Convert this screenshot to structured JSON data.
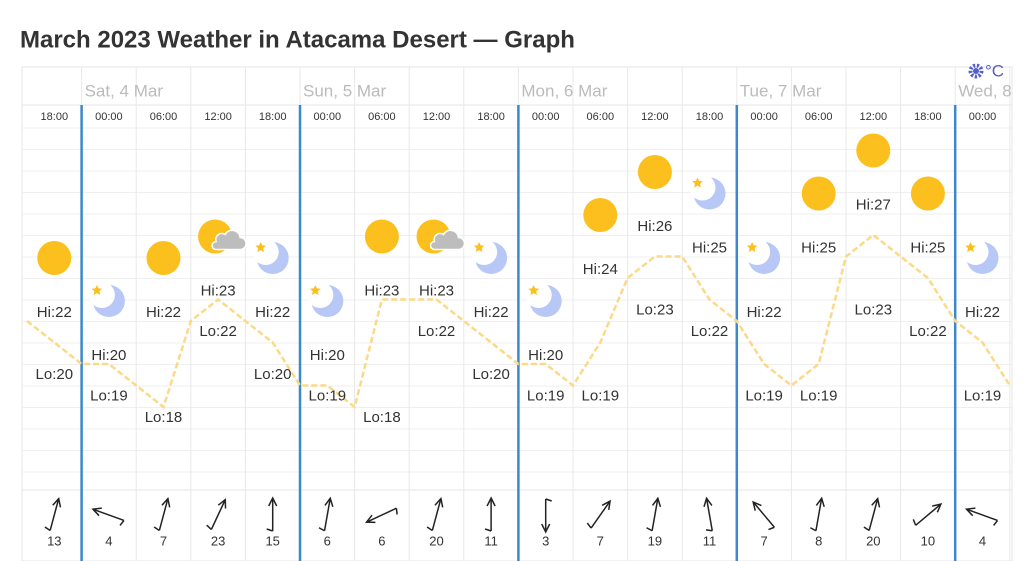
{
  "title": "March 2023 Weather in Atacama Desert — Graph",
  "units": "°C",
  "columns": [
    {
      "time": "18:00",
      "icon": "sun",
      "hi": {
        "label": "Hi:22",
        "value": 22
      },
      "lo": {
        "label": "Lo:20",
        "value": 20
      },
      "wind": 13,
      "direction": 15
    },
    {
      "day": "Sat, 4 Mar",
      "time": "00:00",
      "icon": "moon",
      "hi": {
        "label": "Hi:20",
        "value": 20
      },
      "lo": {
        "label": "Lo:19",
        "value": 19
      },
      "wind": 4,
      "direction": 290
    },
    {
      "time": "06:00",
      "icon": "sun",
      "hi": {
        "label": "Hi:22",
        "value": 22
      },
      "lo": {
        "label": "Lo:18",
        "value": 18
      },
      "wind": 7,
      "direction": 15
    },
    {
      "time": "12:00",
      "icon": "partly-cloudy",
      "hi": {
        "label": "Hi:23",
        "value": 23
      },
      "lo": {
        "label": "Lo:22",
        "value": 22
      },
      "wind": 23,
      "direction": 25
    },
    {
      "time": "18:00",
      "icon": "moon",
      "hi": {
        "label": "Hi:22",
        "value": 22
      },
      "lo": {
        "label": "Lo:20",
        "value": 20
      },
      "wind": 15,
      "direction": 0
    },
    {
      "day": "Sun, 5 Mar",
      "time": "00:00",
      "icon": "moon",
      "hi": {
        "label": "Hi:20",
        "value": 20
      },
      "lo": {
        "label": "Lo:19",
        "value": 19
      },
      "wind": 6,
      "direction": 10
    },
    {
      "time": "06:00",
      "icon": "sun",
      "hi": {
        "label": "Hi:23",
        "value": 23
      },
      "lo": {
        "label": "Lo:18",
        "value": 18
      },
      "wind": 6,
      "direction": 245
    },
    {
      "time": "12:00",
      "icon": "partly-cloudy",
      "hi": {
        "label": "Hi:23",
        "value": 23
      },
      "lo": {
        "label": "Lo:22",
        "value": 22
      },
      "wind": 20,
      "direction": 15
    },
    {
      "time": "18:00",
      "icon": "moon",
      "hi": {
        "label": "Hi:22",
        "value": 22
      },
      "lo": {
        "label": "Lo:20",
        "value": 20
      },
      "wind": 11,
      "direction": 0
    },
    {
      "day": "Mon, 6 Mar",
      "time": "00:00",
      "icon": "moon",
      "hi": {
        "label": "Hi:20",
        "value": 20
      },
      "lo": {
        "label": "Lo:19",
        "value": 19
      },
      "wind": 3,
      "direction": 180
    },
    {
      "time": "06:00",
      "icon": "sun",
      "hi": {
        "label": "Hi:24",
        "value": 24
      },
      "lo": {
        "label": "Lo:19",
        "value": 19
      },
      "wind": 7,
      "direction": 35
    },
    {
      "time": "12:00",
      "icon": "sun",
      "hi": {
        "label": "Hi:26",
        "value": 26
      },
      "lo": {
        "label": "Lo:23",
        "value": 23
      },
      "wind": 19,
      "direction": 10
    },
    {
      "time": "18:00",
      "icon": "moon",
      "hi": {
        "label": "Hi:25",
        "value": 25
      },
      "lo": {
        "label": "Lo:22",
        "value": 22
      },
      "wind": 11,
      "direction": 350
    },
    {
      "day": "Tue, 7 Mar",
      "time": "00:00",
      "icon": "moon",
      "hi": {
        "label": "Hi:22",
        "value": 22
      },
      "lo": {
        "label": "Lo:19",
        "value": 19
      },
      "wind": 7,
      "direction": 320
    },
    {
      "time": "06:00",
      "icon": "sun",
      "hi": {
        "label": "Hi:25",
        "value": 25
      },
      "lo": {
        "label": "Lo:19",
        "value": 19
      },
      "wind": 8,
      "direction": 10
    },
    {
      "time": "12:00",
      "icon": "sun",
      "hi": {
        "label": "Hi:27",
        "value": 27
      },
      "lo": {
        "label": "Lo:23",
        "value": 23
      },
      "wind": 20,
      "direction": 15
    },
    {
      "time": "18:00",
      "icon": "sun",
      "hi": {
        "label": "Hi:25",
        "value": 25
      },
      "lo": {
        "label": "Lo:22",
        "value": 22
      },
      "wind": 10,
      "direction": 50
    },
    {
      "day": "Wed, 8",
      "time": "00:00",
      "icon": "moon",
      "hi": {
        "label": "Hi:22",
        "value": 22
      },
      "lo": {
        "label": "Lo:19",
        "value": 19
      },
      "wind": 4,
      "direction": 290
    }
  ],
  "temperature": {
    "color": "#fbd987",
    "hours": [
      -3,
      0,
      3,
      6,
      9,
      12,
      15,
      18,
      21,
      24,
      27,
      30,
      33,
      36,
      39,
      42,
      45,
      48,
      51,
      54,
      57,
      60,
      63,
      66,
      69,
      72,
      75,
      78,
      81,
      84,
      87,
      90,
      93,
      96,
      99,
      102,
      105
    ],
    "values": [
      22,
      21,
      20,
      20,
      19,
      18,
      22,
      23,
      22,
      21,
      19,
      19,
      18,
      23,
      23,
      23,
      22,
      21,
      20,
      20,
      19,
      21,
      24,
      25,
      25,
      23,
      22,
      20,
      19,
      20,
      25,
      26,
      25,
      24,
      22,
      21,
      19
    ]
  }
}
